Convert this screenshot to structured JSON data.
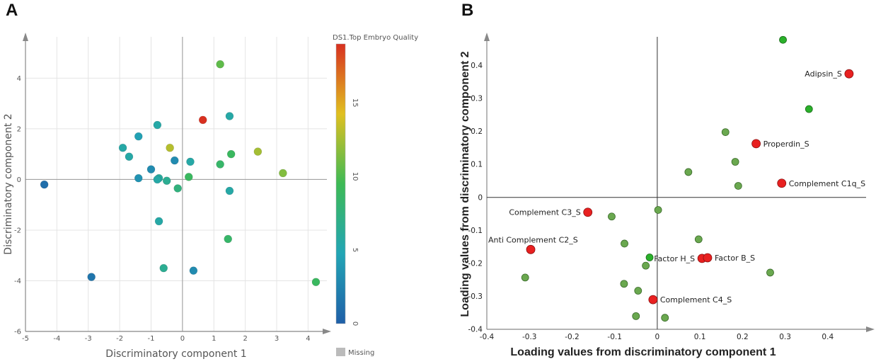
{
  "panels": {
    "a": "A",
    "b": "B"
  },
  "colors": {
    "scale": [
      "#1f5fa8",
      "#22a5b5",
      "#3dba55",
      "#e0c020",
      "#d83020"
    ],
    "points_b_green": "#6aa84f",
    "points_b_bright": "#2ab02a",
    "points_b_red": "#e82020",
    "missing": "#bbbbbb"
  },
  "chart_data": [
    {
      "type": "scatter",
      "xlabel": "Discriminatory component 1",
      "ylabel": "Discriminatory component 2",
      "xlim": [
        -5,
        4.6
      ],
      "ylim": [
        -6,
        5.8
      ],
      "xticks": [
        -5,
        -4,
        -3,
        -2,
        -1,
        0,
        1,
        2,
        3,
        4
      ],
      "yticks": [
        -6,
        -4,
        -2,
        0,
        2,
        4
      ],
      "grid": true,
      "colorbar": {
        "title": "DS1.Top Embryo Quality",
        "range": [
          0,
          19
        ],
        "ticks": [
          0,
          5,
          10,
          15
        ],
        "missing_label": "Missing"
      },
      "points": [
        {
          "x": -4.4,
          "y": -0.2,
          "c": 1
        },
        {
          "x": -2.9,
          "y": -3.85,
          "c": 1.5
        },
        {
          "x": -1.9,
          "y": 1.25,
          "c": 5.5
        },
        {
          "x": -1.7,
          "y": 0.9,
          "c": 5.5
        },
        {
          "x": -1.4,
          "y": 1.7,
          "c": 4.5
        },
        {
          "x": -1.4,
          "y": 0.05,
          "c": 3.5
        },
        {
          "x": -1.0,
          "y": 0.4,
          "c": 3
        },
        {
          "x": -0.8,
          "y": 2.15,
          "c": 5.5
        },
        {
          "x": -0.75,
          "y": 0.05,
          "c": 6
        },
        {
          "x": -0.8,
          "y": 0.0,
          "c": 5.5
        },
        {
          "x": -0.75,
          "y": -1.65,
          "c": 5.5
        },
        {
          "x": -0.5,
          "y": -0.05,
          "c": 6.5
        },
        {
          "x": -0.6,
          "y": -3.5,
          "c": 6.5
        },
        {
          "x": -0.4,
          "y": 1.25,
          "c": 13
        },
        {
          "x": -0.25,
          "y": 0.75,
          "c": 3
        },
        {
          "x": -0.15,
          "y": -0.35,
          "c": 7.5
        },
        {
          "x": 0.2,
          "y": 0.1,
          "c": 9
        },
        {
          "x": 0.25,
          "y": 0.7,
          "c": 5.5
        },
        {
          "x": 0.35,
          "y": -3.6,
          "c": 3
        },
        {
          "x": 0.65,
          "y": 2.35,
          "c": 19
        },
        {
          "x": 1.2,
          "y": 4.55,
          "c": 10.5
        },
        {
          "x": 1.2,
          "y": 0.6,
          "c": 8.5
        },
        {
          "x": 1.45,
          "y": -2.35,
          "c": 8.5
        },
        {
          "x": 1.5,
          "y": 2.5,
          "c": 5.5
        },
        {
          "x": 1.55,
          "y": 1.0,
          "c": 9
        },
        {
          "x": 1.5,
          "y": -0.45,
          "c": 5.5
        },
        {
          "x": 2.4,
          "y": 1.1,
          "c": 12.5
        },
        {
          "x": 3.2,
          "y": 0.25,
          "c": 11.5
        },
        {
          "x": 4.25,
          "y": -4.05,
          "c": 9
        }
      ]
    },
    {
      "type": "scatter",
      "xlabel": "Loading values from discriminatory component 1",
      "ylabel": "Loading values from discriminatory component 2",
      "xlim": [
        -0.4,
        0.5
      ],
      "ylim": [
        -0.4,
        0.5
      ],
      "xticks": [
        -0.4,
        -0.3,
        -0.2,
        -0.1,
        0,
        0.1,
        0.2,
        0.3,
        0.4
      ],
      "yticks": [
        -0.4,
        -0.3,
        -0.2,
        -0.1,
        0,
        0.1,
        0.2,
        0.3,
        0.4
      ],
      "grid": false,
      "labeled_points": [
        {
          "label": "Adipsin_S",
          "x": 0.45,
          "y": 0.375,
          "pos": "left"
        },
        {
          "label": "Properdin_S",
          "x": 0.232,
          "y": 0.163,
          "pos": "right"
        },
        {
          "label": "Complement C1q_S",
          "x": 0.292,
          "y": 0.043,
          "pos": "right"
        },
        {
          "label": "Complement C3_S",
          "x": -0.163,
          "y": -0.045,
          "pos": "left"
        },
        {
          "label": "Anti Complement C2_S",
          "x": -0.297,
          "y": -0.158,
          "pos": "above"
        },
        {
          "label": "Factor H_S",
          "x": 0.105,
          "y": -0.185,
          "pos": "left"
        },
        {
          "label": "Factor B_S",
          "x": 0.118,
          "y": -0.183,
          "pos": "right"
        },
        {
          "label": "Complement C4_S",
          "x": -0.01,
          "y": -0.31,
          "pos": "right"
        }
      ],
      "bright_points": [
        {
          "x": 0.295,
          "y": 0.478
        },
        {
          "x": 0.356,
          "y": 0.268
        },
        {
          "x": -0.018,
          "y": -0.182
        }
      ],
      "points": [
        {
          "x": 0.16,
          "y": 0.198
        },
        {
          "x": 0.183,
          "y": 0.108
        },
        {
          "x": 0.19,
          "y": 0.035
        },
        {
          "x": 0.073,
          "y": 0.077
        },
        {
          "x": 0.002,
          "y": -0.038
        },
        {
          "x": -0.107,
          "y": -0.058
        },
        {
          "x": 0.097,
          "y": -0.127
        },
        {
          "x": -0.077,
          "y": -0.14
        },
        {
          "x": -0.027,
          "y": -0.207
        },
        {
          "x": -0.31,
          "y": -0.243
        },
        {
          "x": 0.265,
          "y": -0.228
        },
        {
          "x": -0.078,
          "y": -0.262
        },
        {
          "x": -0.045,
          "y": -0.283
        },
        {
          "x": -0.05,
          "y": -0.36
        },
        {
          "x": 0.018,
          "y": -0.365
        }
      ]
    }
  ]
}
